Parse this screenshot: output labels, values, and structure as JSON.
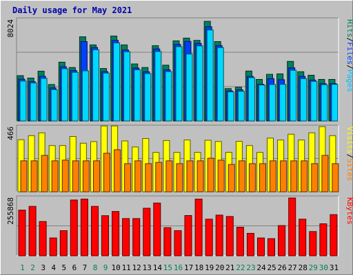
{
  "chart_data": {
    "type": "bar",
    "title": "Daily usage for May 2021",
    "categories": [
      "1",
      "2",
      "3",
      "4",
      "5",
      "6",
      "7",
      "8",
      "9",
      "10",
      "11",
      "12",
      "13",
      "14",
      "15",
      "16",
      "17",
      "18",
      "19",
      "20",
      "21",
      "22",
      "23",
      "24",
      "25",
      "26",
      "27",
      "28",
      "29",
      "30",
      "31"
    ],
    "weekend_days": [
      "1",
      "2",
      "8",
      "9",
      "15",
      "16",
      "22",
      "23",
      "29",
      "30"
    ],
    "panels": [
      {
        "id": "hits-files-pages",
        "ymax_label": "8024",
        "ymax": 8024,
        "right_labels": [
          {
            "text": "Hits",
            "color": "#00805c"
          },
          {
            "text": "/",
            "color": "#000000"
          },
          {
            "text": "Files",
            "color": "#0040ff"
          },
          {
            "text": "/",
            "color": "#000000"
          },
          {
            "text": "Pages",
            "color": "#00c0ff"
          }
        ],
        "series": [
          {
            "name": "Hits",
            "color": "#00805c",
            "values": [
              3580,
              3390,
              3930,
              2880,
              4640,
              4220,
              6640,
              6000,
              4140,
              6700,
              6000,
              4500,
              4220,
              5940,
              4400,
              6320,
              6540,
              6360,
              7860,
              6260,
              2560,
              2660,
              3940,
              3280,
              3680,
              3720,
              4700,
              3890,
              3610,
              3280,
              3280
            ]
          },
          {
            "name": "Files",
            "color": "#0040ff",
            "values": [
              3300,
              3110,
              3530,
              2610,
              4280,
              3980,
              6260,
              5800,
              3900,
              6360,
              5600,
              4180,
              3880,
              5680,
              4040,
              6040,
              6280,
              6120,
              7440,
              5950,
              2380,
              2460,
              3520,
              2900,
              3340,
              3260,
              4190,
              3520,
              3230,
              2950,
              2950
            ]
          },
          {
            "name": "Pages",
            "color": "#00d8ff",
            "values": [
              3150,
              3000,
              3360,
              2470,
              4120,
              3840,
              3960,
              5620,
              3780,
              6160,
              5460,
              4040,
              3740,
              5480,
              3900,
              5860,
              5280,
              5920,
              7180,
              5790,
              2300,
              2340,
              3420,
              2840,
              2880,
              2890,
              4000,
              3340,
              3130,
              2860,
              2890
            ]
          }
        ]
      },
      {
        "id": "visits-sites",
        "ymax_label": "466",
        "ymax": 466,
        "right_labels": [
          {
            "text": "Visits",
            "color": "#ffff00"
          },
          {
            "text": "/",
            "color": "#000000"
          },
          {
            "text": "Sites",
            "color": "#ff8000"
          }
        ],
        "series": [
          {
            "name": "Visits",
            "color": "#ffff00",
            "values": [
              372,
              401,
              421,
              330,
              330,
              395,
              347,
              358,
              470,
              470,
              363,
              320,
              380,
              281,
              366,
              281,
              370,
              281,
              368,
              359,
              282,
              360,
              330,
              281,
              383,
              370,
              411,
              370,
              421,
              465,
              401
            ]
          },
          {
            "name": "Sites",
            "color": "#ff8000",
            "values": [
              221,
              221,
              260,
              221,
              226,
              221,
              221,
              221,
              275,
              300,
              201,
              221,
              201,
              210,
              221,
              201,
              221,
              221,
              240,
              226,
              195,
              221,
              201,
              201,
              221,
              221,
              221,
              221,
              201,
              260,
              201
            ]
          }
        ]
      },
      {
        "id": "kbytes",
        "ymax_label": "255868",
        "ymax": 255868,
        "right_labels": [
          {
            "text": "KBytes",
            "color": "#ff0000"
          }
        ],
        "series": [
          {
            "name": "KBytes",
            "color": "#ff0000",
            "values": [
              199800,
              216000,
              150000,
              78000,
              110000,
              244000,
              248000,
              216000,
              175600,
              194000,
              163000,
              163000,
              208000,
              231000,
              123000,
              110000,
              176000,
              248000,
              160000,
              178000,
              172000,
              125000,
              98000,
              78000,
              75000,
              132000,
              253000,
              160000,
              106000,
              140000,
              180000
            ]
          }
        ]
      }
    ]
  }
}
